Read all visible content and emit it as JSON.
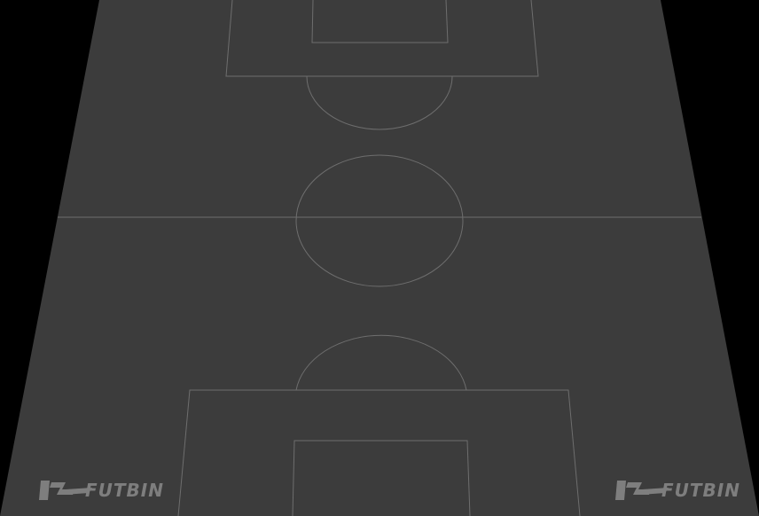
{
  "pitch": {
    "surface_color": "#3c3c3c",
    "background_color": "#000000",
    "line_color": "#6e6e6e"
  },
  "watermark": {
    "text": "FUTBIN",
    "color": "#8a8a8a",
    "icon": "futbin-logo-icon"
  }
}
